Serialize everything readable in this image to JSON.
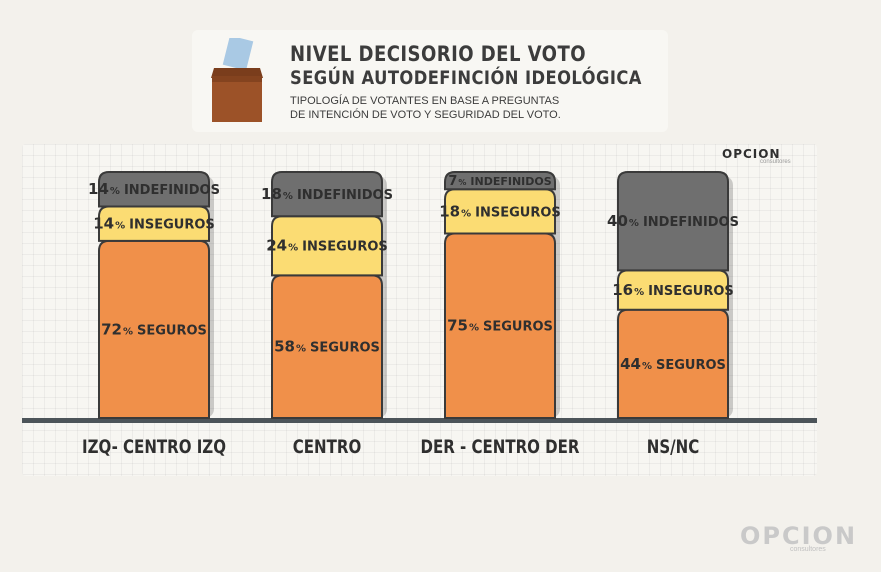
{
  "header": {
    "title_line1": "NIVEL DECISORIO DEL VOTO",
    "title_line2": "SEGÚN AUTODEFINCIÓN IDEOLÓGICA",
    "subtitle_line1": "TIPOLOGÍA DE VOTANTES EN BASE A PREGUNTAS",
    "subtitle_line2": "DE INTENCIÓN DE VOTO Y SEGURIDAD DEL VOTO."
  },
  "logo": {
    "name": "OPCION",
    "tagline": "consultores"
  },
  "icons": {
    "ballot": "ballot-box-icon"
  },
  "colors": {
    "seguros": "#f0904a",
    "inseguros": "#fbdc73",
    "indefinidos": "#6f6f6f",
    "outline": "#3a3a3a",
    "baseline": "#4c5459"
  },
  "chart_data": {
    "type": "bar",
    "stacked": true,
    "categories": [
      "IZQ- CENTRO IZQ",
      "CENTRO",
      "DER - CENTRO DER",
      "NS/NC"
    ],
    "series": [
      {
        "key": "seguros",
        "name": "SEGUROS",
        "values": [
          72,
          58,
          75,
          44
        ]
      },
      {
        "key": "inseguros",
        "name": "INSEGUROS",
        "values": [
          14,
          24,
          18,
          16
        ]
      },
      {
        "key": "indefinidos",
        "name": "INDEFINIDOS",
        "values": [
          14,
          18,
          7,
          40
        ]
      }
    ],
    "unit": "%",
    "ylim": [
      0,
      100
    ],
    "grid": true,
    "legend": "none"
  }
}
